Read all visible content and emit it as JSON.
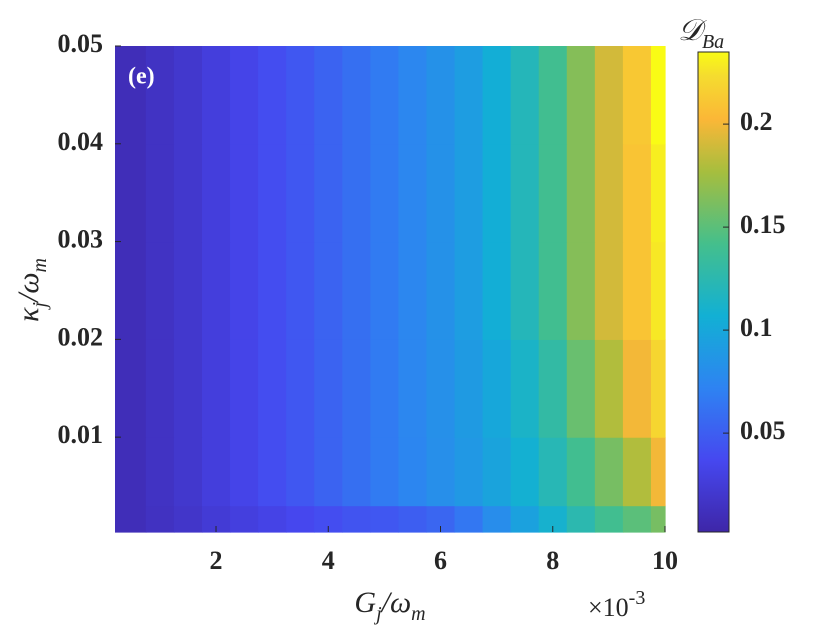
{
  "chart_data": {
    "type": "heatmap",
    "panel_label": "(e)",
    "xlabel": [
      "G",
      "j",
      "/ω",
      "m"
    ],
    "ylabel": [
      "κ",
      "j",
      "/ω",
      "m"
    ],
    "colorbar_label": [
      "𝒟",
      "Ba"
    ],
    "x_multiplier": "×10",
    "x_exponent": "-3",
    "colormap": "parula",
    "x": [
      0.5,
      1,
      1.5,
      2,
      2.5,
      3,
      3.5,
      4,
      4.5,
      5,
      5.5,
      6,
      6.5,
      7,
      7.5,
      8,
      8.5,
      9,
      9.5,
      10
    ],
    "y": [
      0.001,
      0.005,
      0.015,
      0.025,
      0.035,
      0.045
    ],
    "values": [
      [
        0.01,
        0.014,
        0.018,
        0.024,
        0.028,
        0.032,
        0.036,
        0.04,
        0.044,
        0.046,
        0.05,
        0.055,
        0.065,
        0.08,
        0.095,
        0.11,
        0.125,
        0.14,
        0.15,
        0.16
      ],
      [
        0.01,
        0.015,
        0.02,
        0.027,
        0.033,
        0.04,
        0.046,
        0.053,
        0.06,
        0.067,
        0.074,
        0.081,
        0.088,
        0.097,
        0.108,
        0.122,
        0.14,
        0.16,
        0.18,
        0.2
      ],
      [
        0.01,
        0.015,
        0.02,
        0.027,
        0.033,
        0.04,
        0.046,
        0.053,
        0.06,
        0.067,
        0.075,
        0.082,
        0.09,
        0.1,
        0.113,
        0.13,
        0.155,
        0.18,
        0.2,
        0.22
      ],
      [
        0.01,
        0.015,
        0.02,
        0.027,
        0.033,
        0.04,
        0.046,
        0.053,
        0.06,
        0.067,
        0.075,
        0.083,
        0.092,
        0.105,
        0.12,
        0.14,
        0.165,
        0.19,
        0.21,
        0.228
      ],
      [
        0.01,
        0.015,
        0.02,
        0.027,
        0.033,
        0.04,
        0.046,
        0.053,
        0.06,
        0.067,
        0.075,
        0.083,
        0.092,
        0.105,
        0.12,
        0.14,
        0.165,
        0.19,
        0.21,
        0.23
      ],
      [
        0.01,
        0.015,
        0.02,
        0.027,
        0.033,
        0.04,
        0.046,
        0.053,
        0.06,
        0.067,
        0.075,
        0.083,
        0.092,
        0.105,
        0.12,
        0.14,
        0.165,
        0.19,
        0.212,
        0.235
      ]
    ],
    "xlim": [
      0.2,
      10
    ],
    "xticks": [
      2,
      4,
      6,
      8,
      10
    ],
    "ylim": [
      0.0003,
      0.05
    ],
    "yticks": [
      0.01,
      0.02,
      0.03,
      0.04,
      0.05
    ],
    "clim": [
      0.002,
      0.235
    ],
    "cticks": [
      0.05,
      0.1,
      0.15,
      0.2
    ]
  }
}
